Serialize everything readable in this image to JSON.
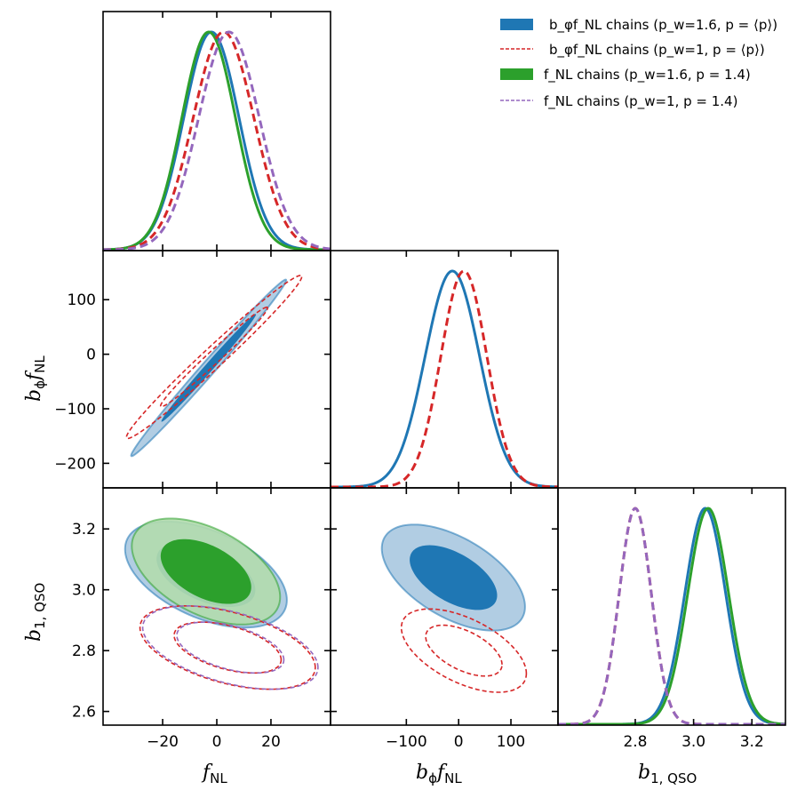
{
  "colors": {
    "blue": "#1f77b4",
    "red": "#d62728",
    "green": "#2ca02c",
    "purple": "#9467bd",
    "blue_fill_outer": "#a9c8e0",
    "blue_fill_inner": "#1f77b4",
    "green_fill_outer": "#b2dcad",
    "green_fill_inner": "#2ca02c"
  },
  "legend": [
    {
      "key": "blue",
      "style": "filled",
      "text": "b_φf_NL chains (p_w=1.6, p = ⟨p⟩)"
    },
    {
      "key": "red",
      "style": "dashed",
      "text": "b_φf_NL chains (p_w=1, p = ⟨p⟩)"
    },
    {
      "key": "green",
      "style": "filled",
      "text": "f_NL chains (p_w=1.6, p = 1.4)"
    },
    {
      "key": "purple",
      "style": "dashed",
      "text": "f_NL chains (p_w=1, p = 1.4)"
    }
  ],
  "labels": {
    "x_fnl": "f",
    "x_fnl_sub": "NL",
    "x_bphi": "b",
    "x_bphi_sub1": "ϕ",
    "x_bphi_mid": "f",
    "x_bphi_sub2": "NL",
    "x_b1": "b",
    "x_b1_sub": "1, QSO",
    "y_bphi": "b",
    "y_bphi_sub1": "ϕ",
    "y_bphi_mid": "f",
    "y_bphi_sub2": "NL",
    "y_b1": "b",
    "y_b1_sub": "1, QSO"
  },
  "chart_data": {
    "type": "corner",
    "parameters": [
      "f_NL",
      "b_φ f_NL",
      "b_1,QSO"
    ],
    "axes": {
      "f_NL": {
        "lim": [
          -42,
          42
        ],
        "ticks": [
          -20,
          0,
          20
        ],
        "tick_labels": [
          "−20",
          "0",
          "20"
        ]
      },
      "b_phi_f_NL": {
        "lim": [
          -245,
          190
        ],
        "ticks": [
          -200,
          -100,
          0,
          100
        ],
        "tick_labels": [
          "−200",
          "−100",
          "0",
          "100"
        ]
      },
      "b_phi_f_NL_x": {
        "lim": [
          -245,
          190
        ],
        "ticks": [
          -100,
          0,
          100
        ],
        "tick_labels": [
          "−100",
          "0",
          "100"
        ]
      },
      "b1": {
        "lim": [
          2.555,
          3.335
        ],
        "ticks": [
          2.6,
          2.8,
          3.0,
          3.2
        ],
        "tick_labels": [
          "2.6",
          "2.8",
          "3.0",
          "3.2"
        ]
      },
      "b1_x": {
        "lim": [
          2.535,
          3.315
        ],
        "ticks": [
          2.8,
          3.0,
          3.2
        ],
        "tick_labels": [
          "2.8",
          "3.0",
          "3.2"
        ]
      }
    },
    "marginals": {
      "f_NL": [
        {
          "series": "blue",
          "mean": -2,
          "sigma": 10.2,
          "dashed": false
        },
        {
          "series": "green",
          "mean": -3,
          "sigma": 9.9,
          "dashed": false
        },
        {
          "series": "red",
          "mean": 2.5,
          "sigma": 11.2,
          "dashed": true
        },
        {
          "series": "purple",
          "mean": 4.5,
          "sigma": 11.2,
          "dashed": true
        }
      ],
      "b_phi_f_NL": [
        {
          "series": "blue",
          "mean": -12,
          "sigma": 52,
          "dashed": false
        },
        {
          "series": "red",
          "mean": 10,
          "sigma": 44,
          "dashed": true
        }
      ],
      "b1": [
        {
          "series": "blue",
          "mean": 3.04,
          "sigma": 0.07,
          "dashed": false
        },
        {
          "series": "green",
          "mean": 3.05,
          "sigma": 0.07,
          "dashed": false
        },
        {
          "series": "red",
          "mean": 2.8,
          "sigma": 0.055,
          "dashed": true
        },
        {
          "series": "purple",
          "mean": 2.8,
          "sigma": 0.055,
          "dashed": true
        }
      ]
    },
    "contours_2d": {
      "f_NL_vs_b_phi_f_NL": [
        {
          "series": "blue",
          "center": [
            -3,
            -25
          ],
          "sigma": [
            11.5,
            65
          ],
          "rho": 0.993,
          "levels": [
            1,
            2
          ],
          "filled": true
        },
        {
          "series": "red",
          "center": [
            -1,
            -5
          ],
          "sigma": [
            13,
            60
          ],
          "rho": 0.985,
          "levels": [
            1,
            2
          ],
          "filled": false
        }
      ],
      "f_NL_vs_b1": [
        {
          "series": "blue",
          "center": [
            -4,
            3.05
          ],
          "sigma": [
            12,
            0.07
          ],
          "rho": -0.48,
          "levels": [
            1,
            2
          ],
          "filled": true
        },
        {
          "series": "green",
          "center": [
            -4,
            3.06
          ],
          "sigma": [
            11,
            0.07
          ],
          "rho": -0.48,
          "levels": [
            1,
            2
          ],
          "filled": true
        },
        {
          "series": "red",
          "center": [
            4,
            2.81
          ],
          "sigma": [
            13,
            0.055
          ],
          "rho": -0.48,
          "levels": [
            1,
            2
          ],
          "filled": false
        },
        {
          "series": "purple",
          "center": [
            5,
            2.81
          ],
          "sigma": [
            13,
            0.055
          ],
          "rho": -0.48,
          "levels": [
            1,
            2
          ],
          "filled": false
        }
      ],
      "b_phi_f_NL_vs_b1": [
        {
          "series": "blue",
          "center": [
            -10,
            3.04
          ],
          "sigma": [
            55,
            0.07
          ],
          "rho": -0.55,
          "levels": [
            1,
            2
          ],
          "filled": true
        },
        {
          "series": "red",
          "center": [
            10,
            2.8
          ],
          "sigma": [
            48,
            0.055
          ],
          "rho": -0.55,
          "levels": [
            1,
            2
          ],
          "filled": false
        }
      ]
    }
  }
}
